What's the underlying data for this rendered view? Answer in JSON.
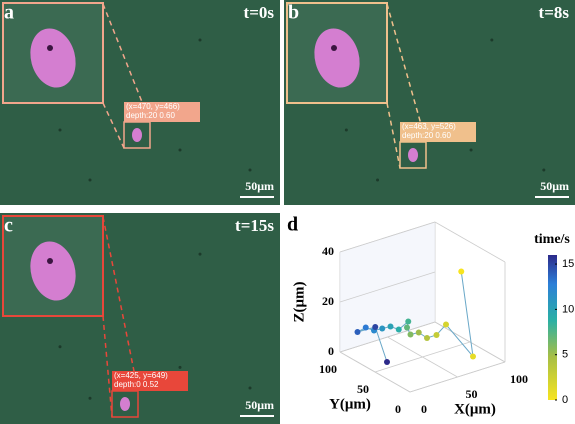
{
  "panels": [
    {
      "label": "a",
      "time": "t=0s",
      "coords": "(x=470, y=466)",
      "depth": "depth:20 0.60",
      "scale_bar": "50μm",
      "color": "#f2a68c"
    },
    {
      "label": "b",
      "time": "t=8s",
      "coords": "(x=463, y=526)",
      "depth": "depth:20 0.60",
      "scale_bar": "50μm",
      "color": "#f0c08c"
    },
    {
      "label": "c",
      "time": "t=15s",
      "coords": "(x=425, y=649)",
      "depth": "depth:0 0.52",
      "scale_bar": "50μm",
      "color": "#e8473a"
    }
  ],
  "chart_data": {
    "type": "scatter3d",
    "label": "d",
    "x_label": "X(μm)",
    "y_label": "Y(μm)",
    "z_label": "Z(μm)",
    "colorbar_label": "time/s",
    "xlim": [
      0,
      100
    ],
    "ylim": [
      0,
      100
    ],
    "zlim": [
      0,
      40
    ],
    "xticks": [
      0,
      50,
      100
    ],
    "yticks": [
      0,
      50,
      100
    ],
    "zticks": [
      0,
      20,
      40
    ],
    "clim": [
      0,
      16
    ],
    "cticks": [
      0,
      5,
      10,
      15
    ],
    "x": [
      65,
      70,
      60,
      50,
      40,
      35,
      30,
      30,
      35,
      25,
      20,
      15,
      10,
      5,
      0,
      15,
      20
    ],
    "y": [
      15,
      5,
      30,
      30,
      30,
      35,
      40,
      45,
      50,
      50,
      55,
      60,
      65,
      70,
      75,
      70,
      60
    ],
    "z": [
      38,
      5,
      15,
      12,
      12,
      14,
      13,
      15,
      16,
      14,
      15,
      14,
      13,
      14,
      12,
      13,
      0
    ],
    "t": [
      0,
      1,
      2,
      3,
      4,
      5,
      6,
      7,
      8,
      9,
      10,
      11,
      12,
      13,
      14,
      15,
      16
    ]
  }
}
